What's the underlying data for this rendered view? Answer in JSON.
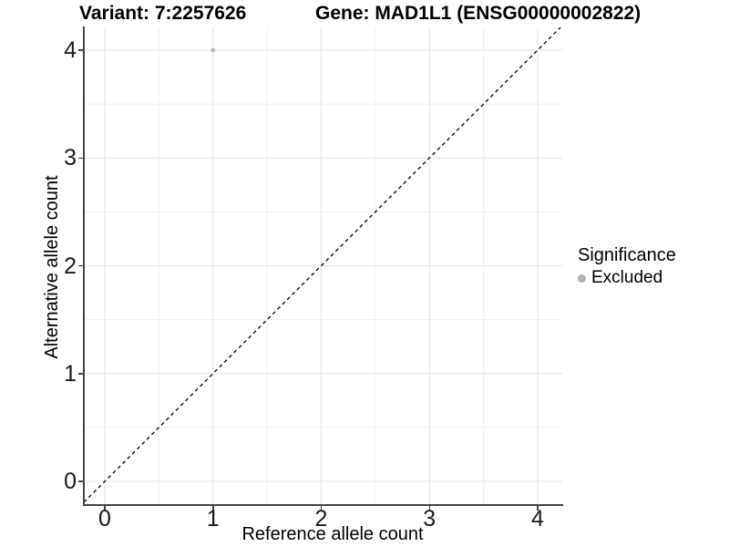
{
  "chart_data": {
    "type": "scatter",
    "title_left": "Variant: 7:2257626",
    "title_right": "Gene: MAD1L1 (ENSG00000002822)",
    "xlabel": "Reference allele count",
    "ylabel": "Alternative allele count",
    "x_ticks": [
      0,
      1,
      2,
      3,
      4
    ],
    "y_ticks": [
      0,
      1,
      2,
      3,
      4
    ],
    "xlim": [
      -0.19,
      4.23
    ],
    "ylim": [
      -0.21,
      4.21
    ],
    "grid": "major-and-minor",
    "legend_position": "right",
    "points": [
      {
        "x": 1,
        "y": 4,
        "group": "Excluded"
      }
    ],
    "reference_line": {
      "kind": "identity",
      "style": "dashed",
      "color": "#000000"
    },
    "legend": {
      "title": "Significance",
      "items": [
        {
          "label": "Excluded",
          "color": "#b3b3b3"
        }
      ]
    },
    "colors": {
      "point": "#b9b9b9",
      "axis_line": "#444444",
      "major_grid": "#e3e3e3",
      "minor_grid": "#efefef",
      "background": "#ffffff"
    }
  }
}
